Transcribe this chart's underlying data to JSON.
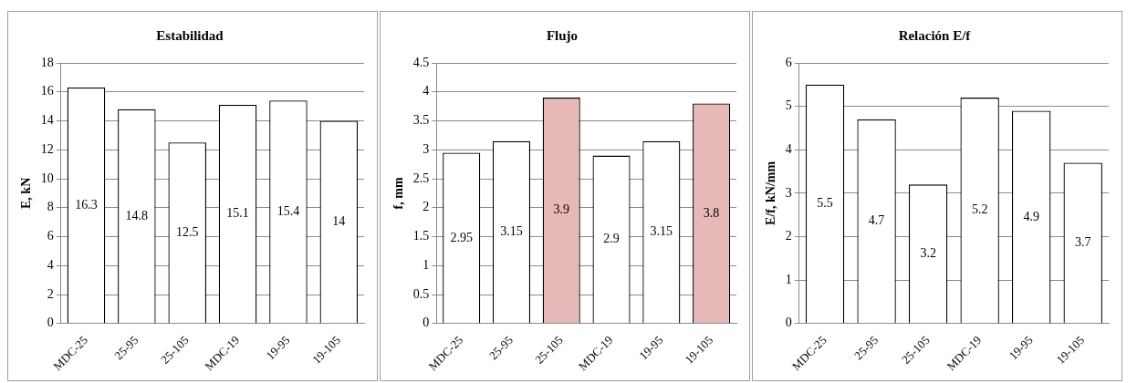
{
  "chart_data": [
    {
      "type": "bar",
      "title": "Estabilidad",
      "ylabel": "E, kN",
      "categories": [
        "MDC-25",
        "25-95",
        "25-105",
        "MDC-19",
        "19-95",
        "19-105"
      ],
      "values": [
        16.3,
        14.8,
        12.5,
        15.1,
        15.4,
        14
      ],
      "colors": [
        "#ffffff",
        "#ffffff",
        "#ffffff",
        "#ffffff",
        "#ffffff",
        "#ffffff"
      ],
      "ylim": [
        0,
        18
      ],
      "yticks": [
        0,
        2,
        4,
        6,
        8,
        10,
        12,
        14,
        16,
        18
      ],
      "grid": "y",
      "data_labels": true
    },
    {
      "type": "bar",
      "title": "Flujo",
      "ylabel": "f, mm",
      "categories": [
        "MDC-25",
        "25-95",
        "25-105",
        "MDC-19",
        "19-95",
        "19-105"
      ],
      "values": [
        2.95,
        3.15,
        3.9,
        2.9,
        3.15,
        3.8
      ],
      "colors": [
        "#ffffff",
        "#ffffff",
        "#e6b8b7",
        "#ffffff",
        "#ffffff",
        "#e6b8b7"
      ],
      "ylim": [
        0,
        4.5
      ],
      "yticks": [
        0,
        0.5,
        1,
        1.5,
        2,
        2.5,
        3,
        3.5,
        4,
        4.5
      ],
      "grid": "y",
      "data_labels": true
    },
    {
      "type": "bar",
      "title": "Relación E/f",
      "ylabel": "E/f, kN/mm",
      "categories": [
        "MDC-25",
        "25-95",
        "25-105",
        "MDC-19",
        "19-95",
        "19-105"
      ],
      "values": [
        5.5,
        4.7,
        3.2,
        5.2,
        4.9,
        3.7
      ],
      "colors": [
        "#ffffff",
        "#ffffff",
        "#ffffff",
        "#ffffff",
        "#ffffff",
        "#ffffff"
      ],
      "ylim": [
        0,
        6
      ],
      "yticks": [
        0,
        1,
        2,
        3,
        4,
        5,
        6
      ],
      "grid": "y",
      "data_labels": true
    }
  ]
}
